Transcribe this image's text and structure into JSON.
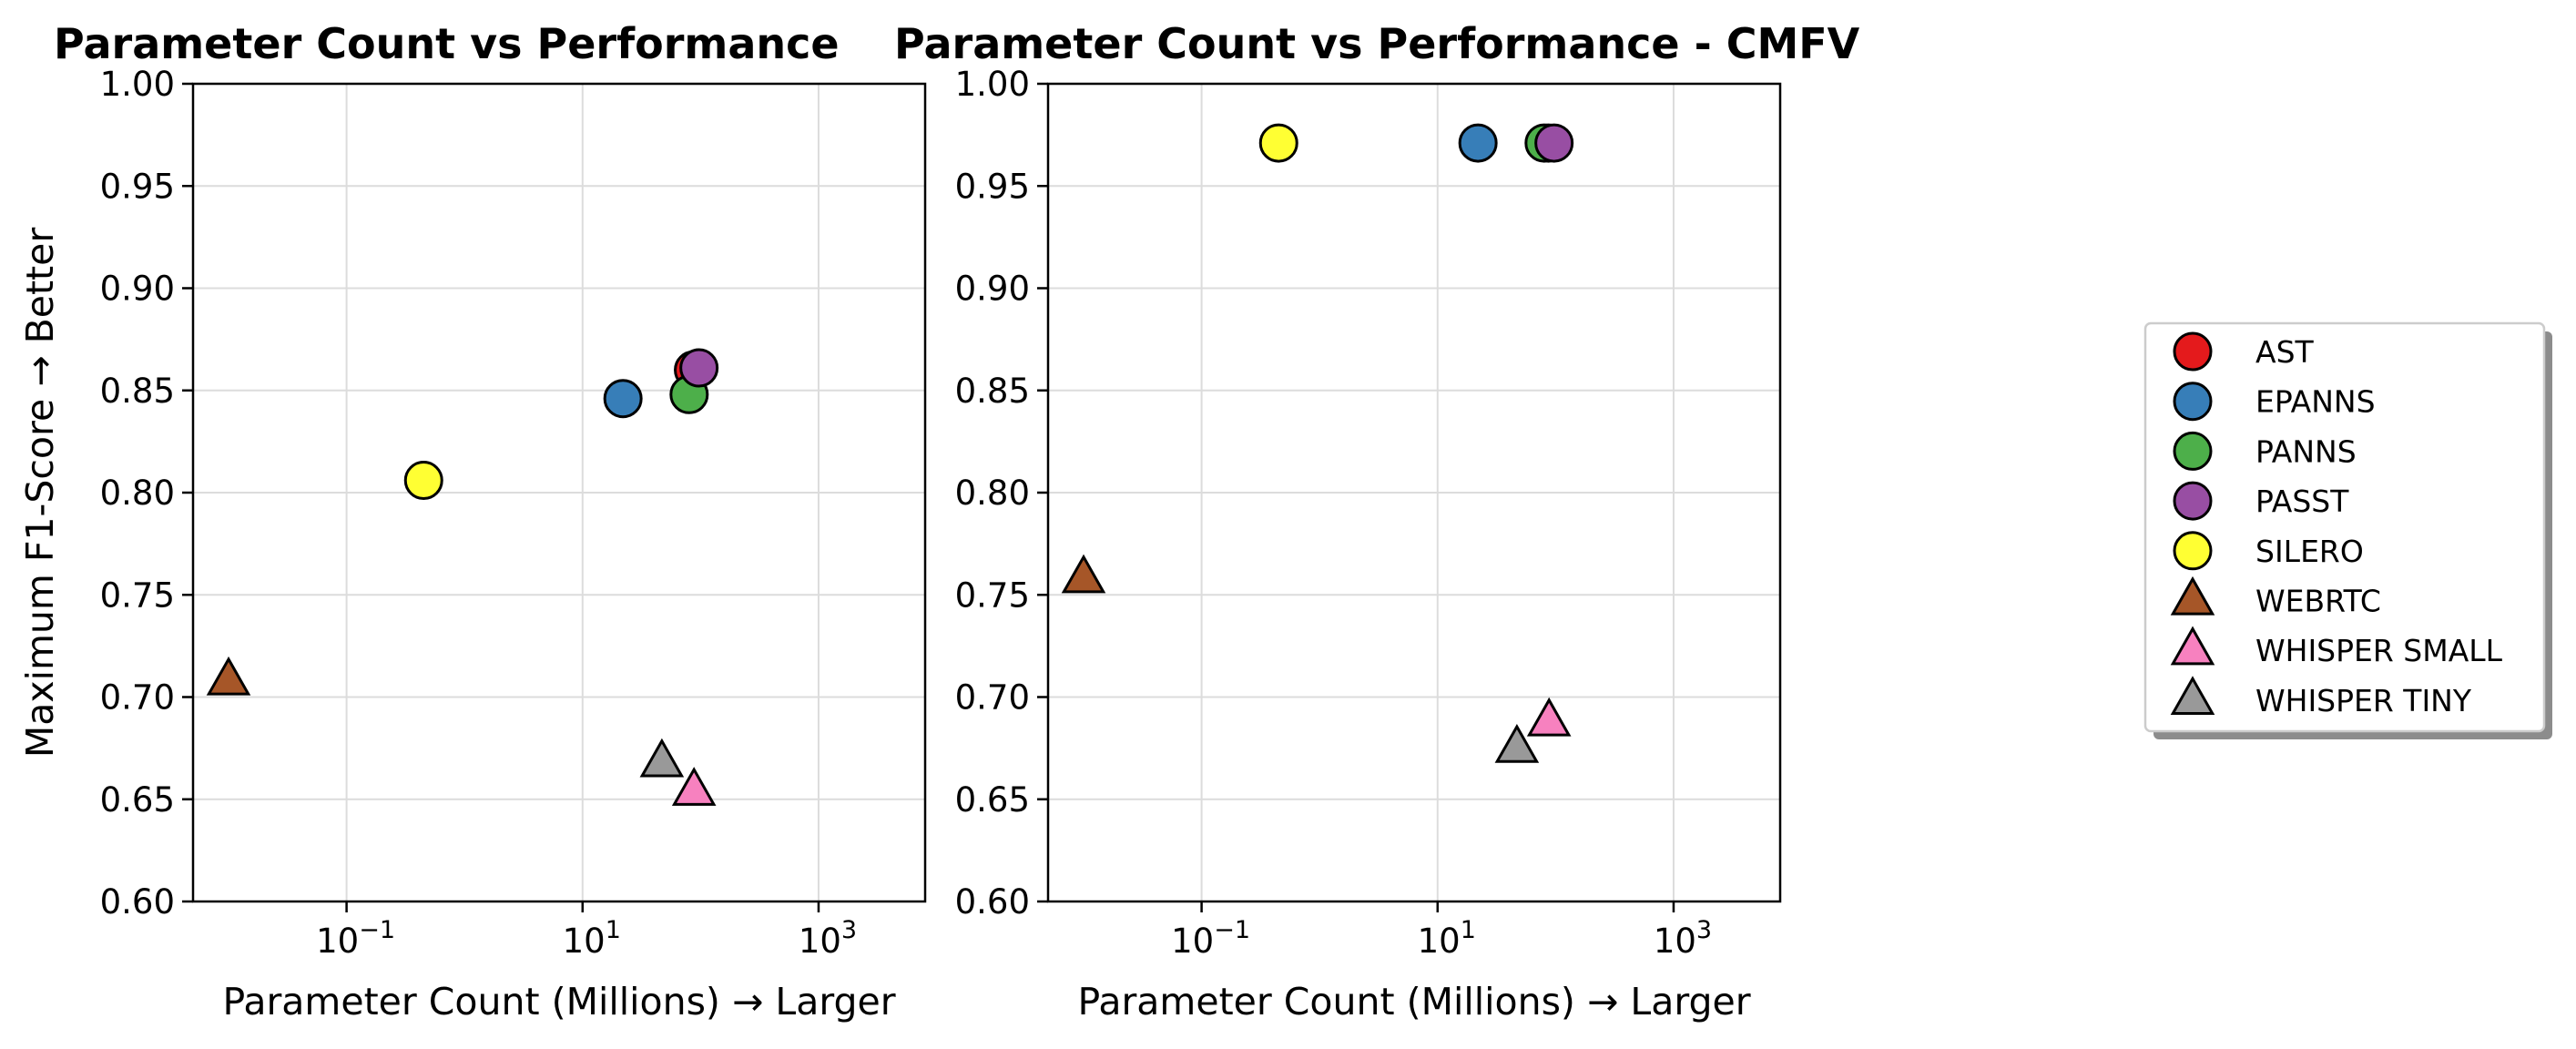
{
  "chart_data": [
    {
      "type": "scatter",
      "title": "Parameter Count vs Performance",
      "xlabel": "Parameter Count (Millions) → Larger",
      "ylabel": "Maximum F1-Score → Better",
      "xscale": "log",
      "xlim": [
        0.005,
        8000
      ],
      "ylim": [
        0.6,
        1.0
      ],
      "xticks": [
        {
          "value": 0.1,
          "base": "10",
          "exp": "−1"
        },
        {
          "value": 10,
          "base": "10",
          "exp": "1"
        },
        {
          "value": 1000,
          "base": "10",
          "exp": "3"
        }
      ],
      "yticks": [
        "0.60",
        "0.65",
        "0.70",
        "0.75",
        "0.80",
        "0.85",
        "0.90",
        "0.95",
        "1.00"
      ],
      "grid": true,
      "points": [
        {
          "model": "AST",
          "x": 87,
          "y": 0.86
        },
        {
          "model": "EPANNS",
          "x": 22,
          "y": 0.846
        },
        {
          "model": "PANNS",
          "x": 80,
          "y": 0.848
        },
        {
          "model": "PASST",
          "x": 97,
          "y": 0.861
        },
        {
          "model": "SILERO",
          "x": 0.45,
          "y": 0.806
        },
        {
          "model": "WEBRTC",
          "x": 0.01,
          "y": 0.708
        },
        {
          "model": "WHISPER SMALL",
          "x": 88,
          "y": 0.654
        },
        {
          "model": "WHISPER TINY",
          "x": 47,
          "y": 0.668
        }
      ]
    },
    {
      "type": "scatter",
      "title": "Parameter Count vs Performance - CMFV",
      "xlabel": "Parameter Count (Millions) → Larger",
      "ylabel": "",
      "xscale": "log",
      "xlim": [
        0.005,
        8000
      ],
      "ylim": [
        0.6,
        1.0
      ],
      "xticks": [
        {
          "value": 0.1,
          "base": "10",
          "exp": "−1"
        },
        {
          "value": 10,
          "base": "10",
          "exp": "1"
        },
        {
          "value": 1000,
          "base": "10",
          "exp": "3"
        }
      ],
      "yticks": [
        "0.60",
        "0.65",
        "0.70",
        "0.75",
        "0.80",
        "0.85",
        "0.90",
        "0.95",
        "1.00"
      ],
      "grid": true,
      "points": [
        {
          "model": "AST",
          "x": 87,
          "y": 0.971
        },
        {
          "model": "EPANNS",
          "x": 22,
          "y": 0.971
        },
        {
          "model": "PANNS",
          "x": 80,
          "y": 0.971
        },
        {
          "model": "PASST",
          "x": 97,
          "y": 0.971
        },
        {
          "model": "SILERO",
          "x": 0.45,
          "y": 0.971
        },
        {
          "model": "WEBRTC",
          "x": 0.01,
          "y": 0.758
        },
        {
          "model": "WHISPER SMALL",
          "x": 88,
          "y": 0.688
        },
        {
          "model": "WHISPER TINY",
          "x": 47,
          "y": 0.675
        }
      ]
    }
  ],
  "legend": {
    "placement": "right",
    "entries": [
      {
        "label": "AST",
        "marker": "circle",
        "color": "#e41a1c"
      },
      {
        "label": "EPANNS",
        "marker": "circle",
        "color": "#377eb8"
      },
      {
        "label": "PANNS",
        "marker": "circle",
        "color": "#4daf4a"
      },
      {
        "label": "PASST",
        "marker": "circle",
        "color": "#984ea3"
      },
      {
        "label": "SILERO",
        "marker": "circle",
        "color": "#ffff33"
      },
      {
        "label": "WEBRTC",
        "marker": "triangle",
        "color": "#a65628"
      },
      {
        "label": "WHISPER SMALL",
        "marker": "triangle",
        "color": "#f781bf"
      },
      {
        "label": "WHISPER TINY",
        "marker": "triangle",
        "color": "#999999"
      }
    ]
  }
}
